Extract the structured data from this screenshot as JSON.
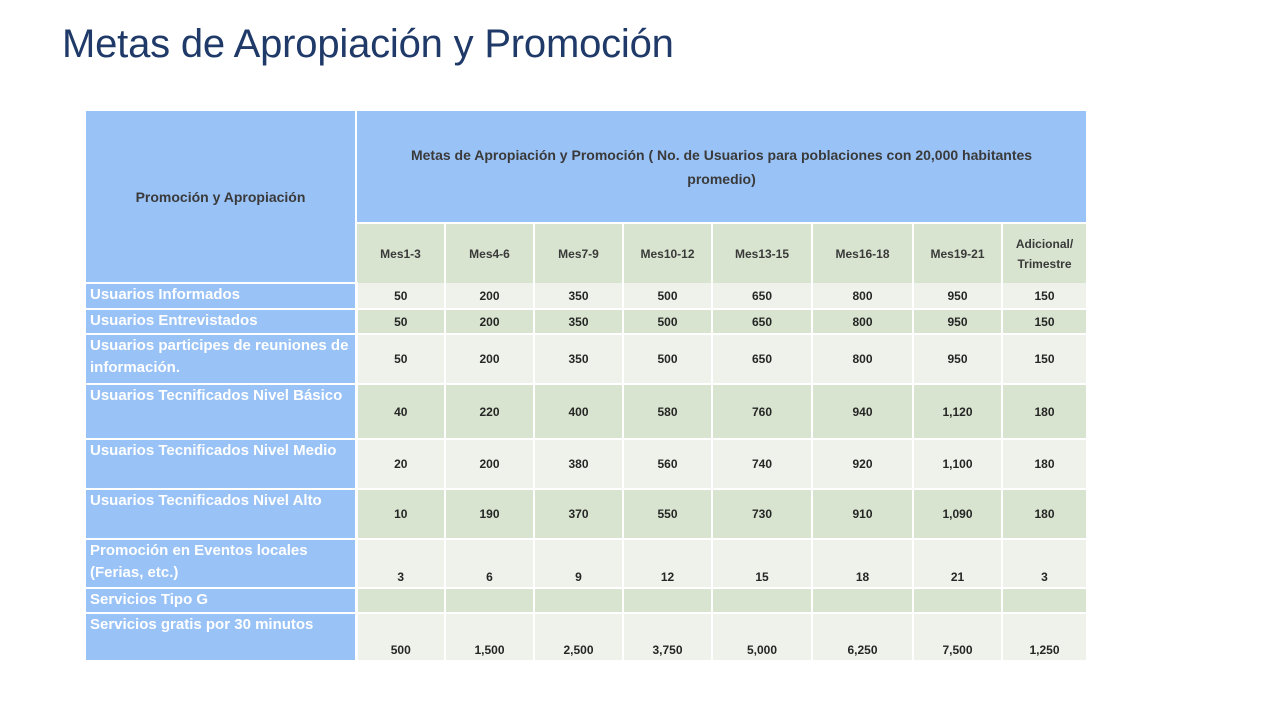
{
  "title": "Metas de Apropiación y Promoción",
  "table": {
    "corner_header": "Promoción y Apropiación",
    "main_header": "Metas de Apropiación y Promoción ( No. de Usuarios para poblaciones con 20,000 habitantes promedio)",
    "columns": [
      "Mes1-3",
      "Mes4-6",
      "Mes7-9",
      "Mes10-12",
      "Mes13-15",
      "Mes16-18",
      "Mes19-21",
      "Adicional/ Trimestre"
    ],
    "rows": [
      {
        "label": "Usuarios Informados",
        "values": [
          "50",
          "200",
          "350",
          "500",
          "650",
          "800",
          "950",
          "150"
        ]
      },
      {
        "label": "Usuarios Entrevistados",
        "values": [
          "50",
          "200",
          "350",
          "500",
          "650",
          "800",
          "950",
          "150"
        ]
      },
      {
        "label": "Usuarios participes de reuniones de información.",
        "values": [
          "50",
          "200",
          "350",
          "500",
          "650",
          "800",
          "950",
          "150"
        ]
      },
      {
        "label": "Usuarios Tecnificados Nivel Básico",
        "values": [
          "40",
          "220",
          "400",
          "580",
          "760",
          "940",
          "1,120",
          "180"
        ]
      },
      {
        "label": "Usuarios Tecnificados Nivel Medio",
        "values": [
          "20",
          "200",
          "380",
          "560",
          "740",
          "920",
          "1,100",
          "180"
        ]
      },
      {
        "label": "Usuarios Tecnificados Nivel Alto",
        "values": [
          "10",
          "190",
          "370",
          "550",
          "730",
          "910",
          "1,090",
          "180"
        ]
      },
      {
        "label": "Promoción en Eventos locales (Ferias, etc.)",
        "values": [
          "3",
          "6",
          "9",
          "12",
          "15",
          "18",
          "21",
          "3"
        ]
      },
      {
        "label": "Servicios Tipo G",
        "values": [
          "",
          "",
          "",
          "",
          "",
          "",
          "",
          ""
        ]
      },
      {
        "label": "Servicios gratis por 30 minutos",
        "values": [
          "500",
          "1,500",
          "2,500",
          "3,750",
          "5,000",
          "6,250",
          "7,500",
          "1,250"
        ]
      }
    ]
  },
  "colors": {
    "title": "#1f3a68",
    "header_blue": "#99c2f7",
    "row_light": "#eef2ea",
    "row_dark": "#d8e4cf"
  }
}
